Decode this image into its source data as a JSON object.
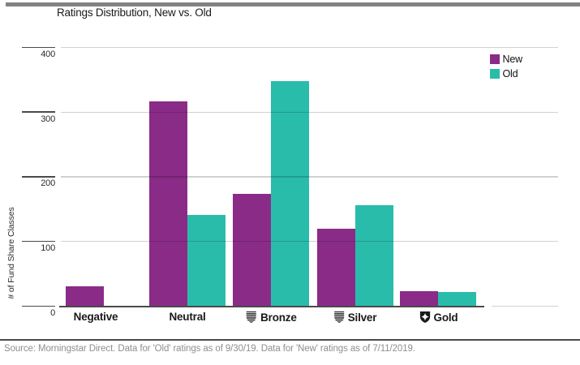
{
  "title": "Ratings Distribution, New vs. Old",
  "source_note": "Source: Morningstar Direct. Data for 'Old' ratings as of 9/30/19. Data for 'New' ratings as of 7/11/2019.",
  "legend": {
    "position": "top-right",
    "items": [
      {
        "label": "New",
        "color": "#8a2b87"
      },
      {
        "label": "Old",
        "color": "#2abcab"
      }
    ]
  },
  "chart_data": {
    "type": "bar",
    "title": "Ratings Distribution, New vs. Old",
    "categories": [
      "Negative",
      "Neutral",
      "Bronze",
      "Silver",
      "Gold"
    ],
    "category_icons": [
      "",
      "",
      "shield-striped-icon",
      "shield-striped-icon",
      "shield-star-icon"
    ],
    "series": [
      {
        "name": "New",
        "color": "#8a2b87",
        "values": [
          31,
          317,
          174,
          120,
          23
        ]
      },
      {
        "name": "Old",
        "color": "#2abcab",
        "values": [
          0,
          141,
          348,
          156,
          22
        ]
      }
    ],
    "xlabel": "",
    "ylabel": "# of Fund Share Classes",
    "yticks": [
      0,
      100,
      200,
      300,
      400
    ],
    "ylim": [
      0,
      420
    ],
    "grid": true,
    "legend_position": "top-right"
  },
  "colors": {
    "new": "#8a2b87",
    "old": "#2abcab",
    "top_rule": "#828282",
    "bottom_rule": "#4b4b4b",
    "gridline": "#d0d0d0",
    "axis": "#4a4a4a",
    "source_text": "#8f8f8f"
  }
}
